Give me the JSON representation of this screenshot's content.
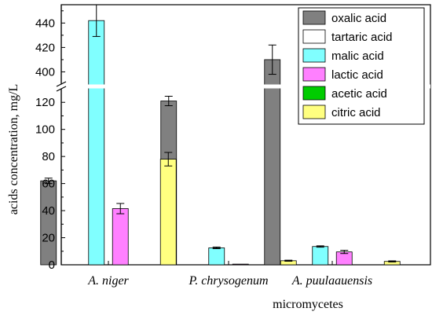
{
  "chart_data": {
    "type": "bar",
    "categories": [
      "A. niger",
      "P. chrysogenum",
      "A. puulaauensis"
    ],
    "xlabel": "micromycetes",
    "ylabel": "acids concentration, mg/L",
    "y_axis_break": {
      "lower_range": [
        0,
        130
      ],
      "upper_range": [
        390,
        455
      ]
    },
    "lower_ticks": [
      0,
      20,
      40,
      60,
      80,
      100,
      120
    ],
    "upper_ticks": [
      400,
      420,
      440
    ],
    "legend_position": "top-right",
    "grid": false,
    "series": [
      {
        "name": "oxalic acid",
        "color": "#808080",
        "values": [
          62,
          121,
          410
        ],
        "errors": [
          2,
          3.5,
          12
        ]
      },
      {
        "name": "tartaric acid",
        "color": "#ffffff",
        "values": [
          0,
          0,
          0
        ],
        "errors": [
          0,
          0,
          0
        ]
      },
      {
        "name": "malic acid",
        "color": "#80ffff",
        "values": [
          442,
          12.5,
          13.5
        ],
        "errors": [
          13,
          0.6,
          0.5
        ]
      },
      {
        "name": "lactic acid",
        "color": "#ff80ff",
        "values": [
          41.5,
          0.5,
          9.5
        ],
        "errors": [
          3.8,
          0,
          1.2
        ]
      },
      {
        "name": "acetic acid",
        "color": "#00cc00",
        "values": [
          0,
          0,
          0
        ],
        "errors": [
          0,
          0,
          0
        ]
      },
      {
        "name": "citric acid",
        "color": "#ffff80",
        "values": [
          78,
          3,
          2.5
        ],
        "errors": [
          5,
          0.4,
          0.4
        ]
      }
    ]
  }
}
